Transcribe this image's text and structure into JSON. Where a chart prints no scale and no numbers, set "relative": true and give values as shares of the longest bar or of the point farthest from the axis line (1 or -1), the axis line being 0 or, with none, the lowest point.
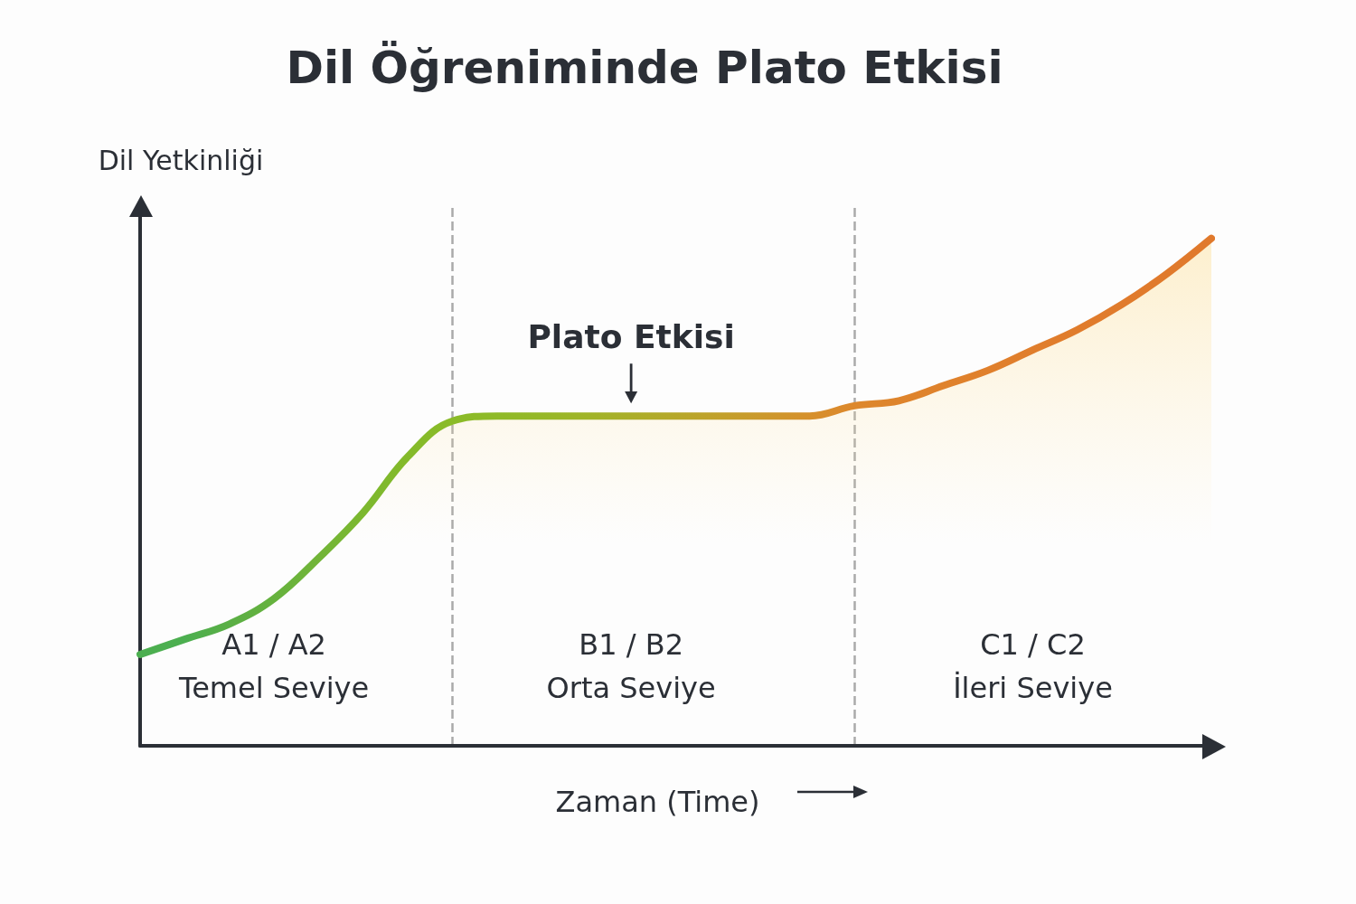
{
  "chart_data": {
    "type": "area",
    "title": "Dil Öğreniminde Plato Etkisi",
    "xlabel": "Zaman (Time)",
    "ylabel": "Dil Yetkinliği",
    "relative": true,
    "categories": [
      null,
      null,
      null,
      "A1 / A2\nTemel Seviye",
      null,
      null,
      null,
      null,
      null,
      null,
      null,
      "B1 / B2\nOrta Seviye",
      null,
      null,
      null,
      null,
      null,
      null,
      null,
      null,
      "C1 / C2\nİleri Seviye",
      null,
      null,
      null,
      null
    ],
    "grid": "x",
    "marker": "none",
    "line_style": "solid",
    "series": [
      {
        "values": [
          0.18,
          0.21,
          0.24,
          0.29,
          0.37,
          0.46,
          0.57,
          0.64,
          0.65,
          0.65,
          0.65,
          0.65,
          0.65,
          0.65,
          0.65,
          0.65,
          0.67,
          0.68,
          0.71,
          0.74,
          0.78,
          0.82,
          0.87,
          0.93,
          1
        ],
        "colors": [
          "#4caf50",
          "#4caf50",
          "#5aaf45",
          "#66b23e",
          "#72b538",
          "#7cb82f",
          "#84ba2a",
          "#8abb28",
          "#8fba28",
          "#96b828",
          "#a0b428",
          "#abae29",
          "#b6a82a",
          "#c2a02b",
          "#cc982c",
          "#d6902c",
          "#dd882c",
          "#de842c",
          "#df822c",
          "#e0802c",
          "#e07e2c",
          "#e07c2c",
          "#e07b2c",
          "#e07a2c",
          "#e0792c"
        ]
      }
    ],
    "annotations": [
      {
        "text": "Plato Etkisi",
        "x": "B1 / B2\nOrta Seviye",
        "y": 0.65
      }
    ]
  }
}
